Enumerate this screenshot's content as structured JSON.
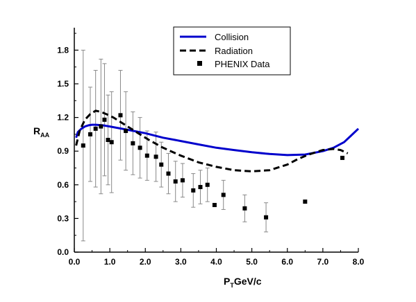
{
  "chart_data": {
    "type": "line",
    "xlabel": {
      "main": "P",
      "sub": "T",
      "rest": "GeV/c"
    },
    "ylabel": {
      "main": "R",
      "sub": "AA"
    },
    "xlim": [
      0.0,
      8.0
    ],
    "ylim": [
      0.0,
      2.0
    ],
    "x_ticks": [
      "0.0",
      "1.0",
      "2.0",
      "3.0",
      "4.0",
      "5.0",
      "6.0",
      "7.0",
      "8.0"
    ],
    "y_ticks": [
      "0.0",
      "0.3",
      "0.6",
      "0.9",
      "1.2",
      "1.5",
      "1.8"
    ],
    "x_tick_values": [
      0,
      1,
      2,
      3,
      4,
      5,
      6,
      7,
      8
    ],
    "y_tick_values": [
      0,
      0.3,
      0.6,
      0.9,
      1.2,
      1.5,
      1.8
    ],
    "legend_position": "top-center",
    "series": [
      {
        "name": "Collision",
        "style": "solid",
        "color": "#0000cc",
        "x": [
          0.05,
          0.1,
          0.2,
          0.3,
          0.4,
          0.5,
          0.6,
          0.8,
          1.0,
          1.5,
          2.0,
          2.5,
          3.0,
          3.5,
          4.0,
          4.5,
          5.0,
          5.5,
          6.0,
          6.5,
          7.0,
          7.3,
          7.6,
          7.8,
          8.0
        ],
        "y": [
          1.02,
          1.07,
          1.1,
          1.12,
          1.13,
          1.135,
          1.135,
          1.13,
          1.12,
          1.09,
          1.06,
          1.02,
          0.99,
          0.96,
          0.93,
          0.91,
          0.89,
          0.875,
          0.865,
          0.87,
          0.9,
          0.93,
          0.98,
          1.04,
          1.1
        ]
      },
      {
        "name": "Radiation",
        "style": "dashed",
        "color": "#000000",
        "x": [
          0.05,
          0.15,
          0.3,
          0.45,
          0.6,
          0.75,
          0.9,
          1.1,
          1.3,
          1.5,
          1.8,
          2.1,
          2.5,
          3.0,
          3.5,
          4.0,
          4.5,
          5.0,
          5.5,
          6.0,
          6.3,
          6.6,
          7.0,
          7.3,
          7.5,
          7.7
        ],
        "y": [
          0.95,
          1.08,
          1.18,
          1.23,
          1.26,
          1.25,
          1.23,
          1.2,
          1.16,
          1.12,
          1.06,
          1.0,
          0.93,
          0.86,
          0.8,
          0.76,
          0.73,
          0.72,
          0.73,
          0.78,
          0.83,
          0.87,
          0.91,
          0.92,
          0.91,
          0.88
        ]
      },
      {
        "name": "PHENIX Data",
        "style": "markers",
        "color": "#000000",
        "x": [
          0.25,
          0.45,
          0.6,
          0.75,
          0.85,
          0.95,
          1.05,
          1.3,
          1.45,
          1.65,
          1.85,
          2.05,
          2.3,
          2.45,
          2.65,
          2.85,
          3.05,
          3.35,
          3.55,
          3.75,
          3.95,
          4.2,
          4.8,
          5.4,
          6.5,
          7.55
        ],
        "y": [
          0.95,
          1.05,
          1.1,
          1.12,
          1.18,
          1.0,
          0.98,
          1.22,
          1.08,
          0.97,
          0.93,
          0.86,
          0.85,
          0.78,
          0.7,
          0.63,
          0.64,
          0.55,
          0.58,
          0.6,
          0.42,
          0.51,
          0.39,
          0.31,
          0.45,
          0.84
        ],
        "err": [
          0.85,
          0.42,
          0.52,
          0.6,
          0.5,
          0.4,
          0.45,
          0.4,
          0.35,
          0.28,
          0.27,
          0.22,
          0.22,
          0.2,
          0.18,
          0.18,
          0.15,
          0.15,
          0.15,
          0.15,
          0.0,
          0.13,
          0.12,
          0.13,
          0.0,
          0.0
        ]
      }
    ]
  }
}
